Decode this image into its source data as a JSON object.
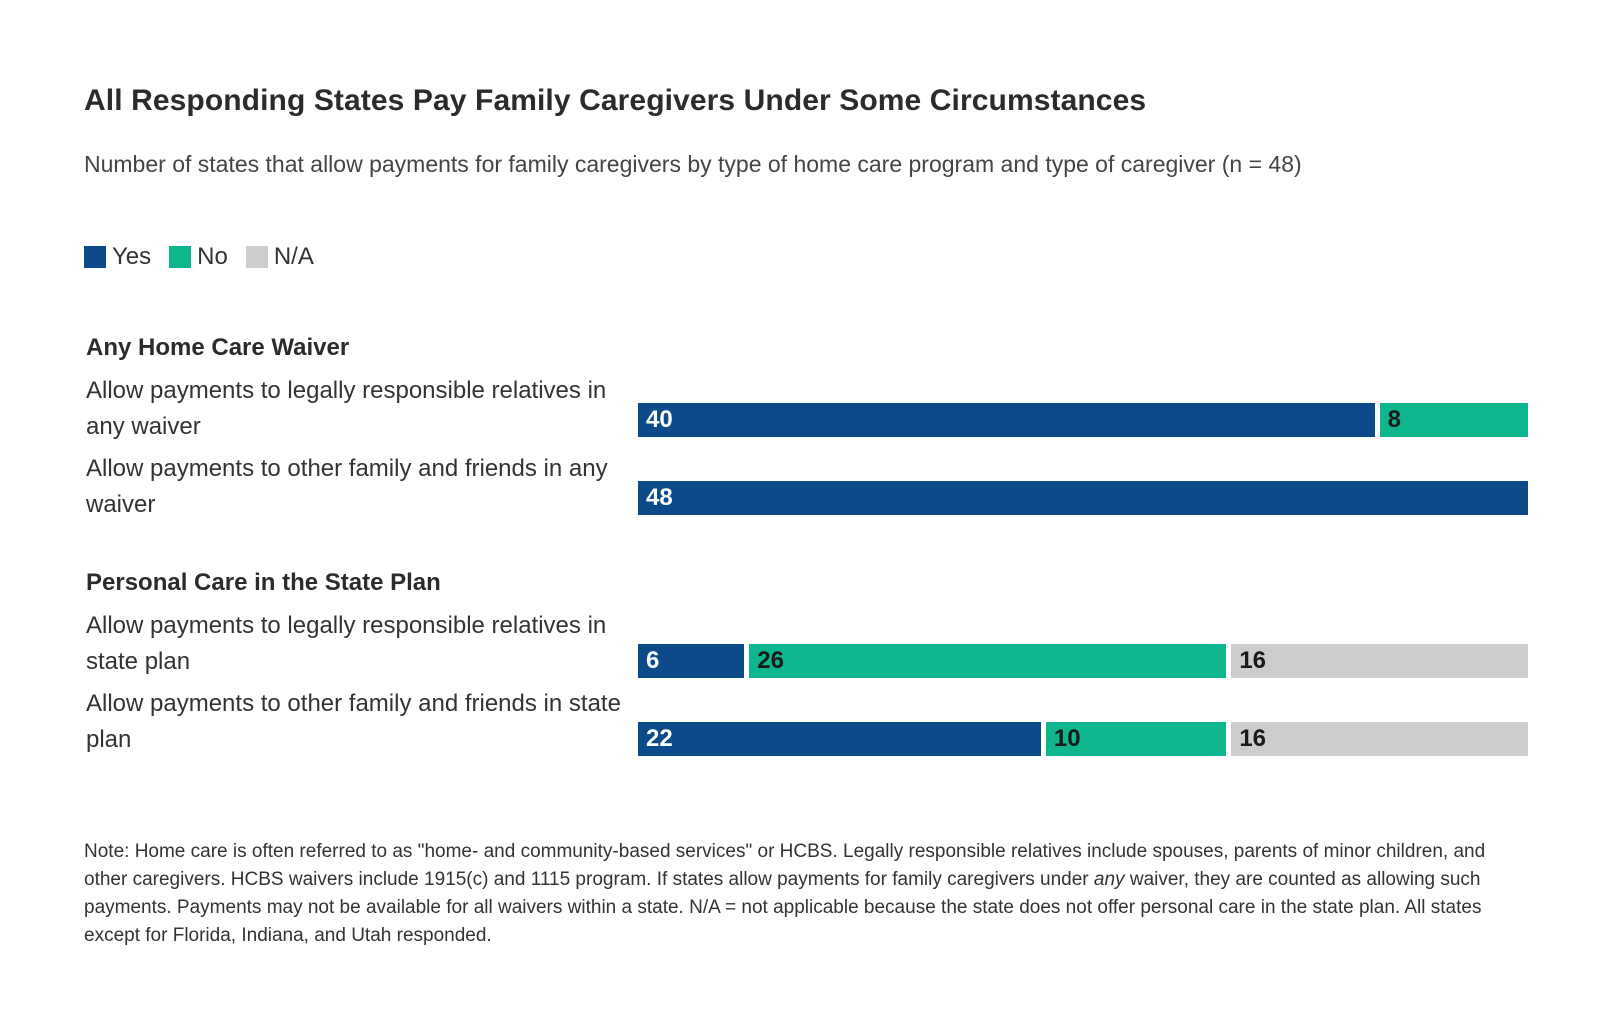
{
  "chart_data": {
    "type": "bar",
    "orientation": "horizontal",
    "stacked": true,
    "title": "All Responding States Pay Family Caregivers Under Some Circumstances",
    "subtitle": "Number of states that allow payments for family caregivers by type of home care program and type of caregiver (n = 48)",
    "total": 48,
    "legend": [
      {
        "name": "Yes",
        "color": "#0d4a8a"
      },
      {
        "name": "No",
        "color": "#0fb58c"
      },
      {
        "name": "N/A",
        "color": "#cccccc"
      }
    ],
    "groups": [
      {
        "title": "Any Home Care Waiver",
        "rows": [
          {
            "label": "Allow payments to legally responsible relatives in any waiver",
            "values": [
              40,
              8,
              0
            ]
          },
          {
            "label": "Allow payments to other family and friends in any waiver",
            "values": [
              48,
              0,
              0
            ]
          }
        ]
      },
      {
        "title": "Personal Care in the State Plan",
        "rows": [
          {
            "label": "Allow payments to legally responsible relatives in state plan",
            "values": [
              6,
              26,
              16
            ]
          },
          {
            "label": "Allow payments to other family and friends in state plan",
            "values": [
              22,
              10,
              16
            ]
          }
        ]
      }
    ],
    "note": {
      "before": "Note: Home care is often referred to as \"home- and community-based services\" or HCBS. Legally responsible relatives include spouses, parents of minor children, and other caregivers. HCBS waivers include 1915(c) and 1115 program. If states allow payments for family caregivers under ",
      "emphasis": "any",
      "after": " waiver, they are counted as allowing such payments. Payments may not be available for all waivers within a state. N/A = not applicable because the state does not offer personal care in the state plan. All states except for Florida, Indiana, and Utah responded."
    }
  }
}
